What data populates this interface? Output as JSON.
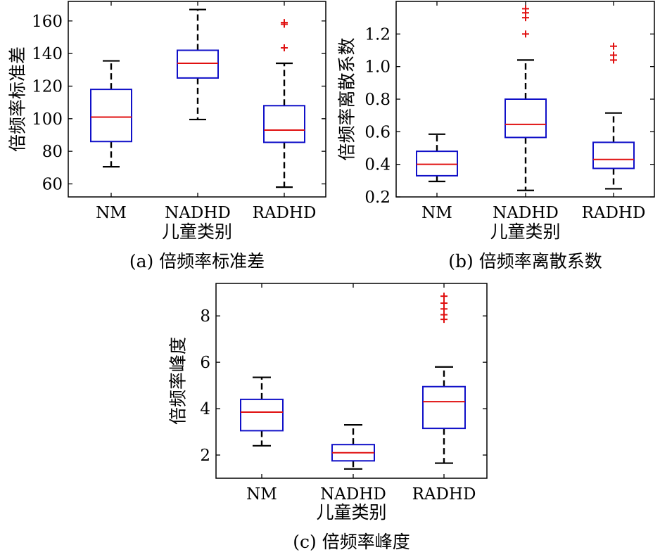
{
  "chart_data": [
    {
      "type": "box",
      "caption": "(a) 倍频率标准差",
      "xlabel": "儿童类别",
      "ylabel": "倍频率标准差",
      "categories": [
        "NM",
        "NADHD",
        "RADHD"
      ],
      "ylim": [
        52,
        172
      ],
      "yticks": [
        60,
        80,
        100,
        120,
        140,
        160
      ],
      "ytick_labels": [
        "60",
        "80",
        "100",
        "120",
        "140",
        "160"
      ],
      "boxes": [
        {
          "whisker_low": 70.5,
          "q1": 86,
          "median": 101,
          "q3": 118,
          "whisker_high": 135.5,
          "outliers": []
        },
        {
          "whisker_low": 99.5,
          "q1": 125,
          "median": 134,
          "q3": 142,
          "whisker_high": 167,
          "outliers": []
        },
        {
          "whisker_low": 58,
          "q1": 85.5,
          "median": 93,
          "q3": 108,
          "whisker_high": 134,
          "outliers": [
            143.5,
            158,
            159
          ]
        }
      ],
      "colors": {
        "box": "#1010c8",
        "median": "#e01010",
        "whisker": "#000000",
        "outlier": "#e01010"
      }
    },
    {
      "type": "box",
      "caption": "(b) 倍频率离散系数",
      "xlabel": "儿童类别",
      "ylabel": "倍频率离散系数",
      "categories": [
        "NM",
        "NADHD",
        "RADHD"
      ],
      "ylim": [
        0.2,
        1.4
      ],
      "yticks": [
        0.2,
        0.4,
        0.6,
        0.8,
        1.0,
        1.2
      ],
      "ytick_labels": [
        "0.2",
        "0.4",
        "0.6",
        "0.8",
        "1.0",
        "1.2"
      ],
      "boxes": [
        {
          "whisker_low": 0.295,
          "q1": 0.33,
          "median": 0.4,
          "q3": 0.48,
          "whisker_high": 0.585,
          "outliers": []
        },
        {
          "whisker_low": 0.24,
          "q1": 0.565,
          "median": 0.645,
          "q3": 0.8,
          "whisker_high": 1.04,
          "outliers": [
            1.2,
            1.3,
            1.33,
            1.355
          ]
        },
        {
          "whisker_low": 0.25,
          "q1": 0.375,
          "median": 0.43,
          "q3": 0.535,
          "whisker_high": 0.715,
          "outliers": [
            1.04,
            1.07,
            1.125
          ]
        }
      ],
      "colors": {
        "box": "#1010c8",
        "median": "#e01010",
        "whisker": "#000000",
        "outlier": "#e01010"
      }
    },
    {
      "type": "box",
      "caption": "(c) 倍频率峰度",
      "xlabel": "儿童类别",
      "ylabel": "倍频率峰度",
      "categories": [
        "NM",
        "NADHD",
        "RADHD"
      ],
      "ylim": [
        1,
        9.4
      ],
      "yticks": [
        2,
        4,
        6,
        8
      ],
      "ytick_labels": [
        "2",
        "4",
        "6",
        "8"
      ],
      "boxes": [
        {
          "whisker_low": 2.4,
          "q1": 3.05,
          "median": 3.85,
          "q3": 4.4,
          "whisker_high": 5.35,
          "outliers": []
        },
        {
          "whisker_low": 1.4,
          "q1": 1.75,
          "median": 2.1,
          "q3": 2.45,
          "whisker_high": 3.3,
          "outliers": []
        },
        {
          "whisker_low": 1.65,
          "q1": 3.15,
          "median": 4.3,
          "q3": 4.95,
          "whisker_high": 5.8,
          "outliers": [
            7.85,
            8.05,
            8.3,
            8.55,
            8.85
          ]
        }
      ],
      "colors": {
        "box": "#1010c8",
        "median": "#e01010",
        "whisker": "#000000",
        "outlier": "#e01010"
      }
    }
  ]
}
